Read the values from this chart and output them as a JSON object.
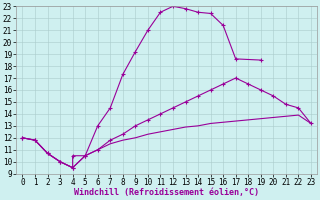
{
  "xlabel": "Windchill (Refroidissement éolien,°C)",
  "bg_color": "#cff0f0",
  "line_color": "#990099",
  "grid_color": "#aacccc",
  "xlim": [
    -0.5,
    23.5
  ],
  "ylim": [
    9,
    23
  ],
  "xticks": [
    0,
    1,
    2,
    3,
    4,
    5,
    6,
    7,
    8,
    9,
    10,
    11,
    12,
    13,
    14,
    15,
    16,
    17,
    18,
    19,
    20,
    21,
    22,
    23
  ],
  "yticks": [
    9,
    10,
    11,
    12,
    13,
    14,
    15,
    16,
    17,
    18,
    19,
    20,
    21,
    22,
    23
  ],
  "curve1_x": [
    0,
    1,
    2,
    3,
    4,
    4,
    5,
    6,
    7,
    8,
    9,
    10,
    11,
    12,
    13,
    14,
    15,
    16,
    17,
    19
  ],
  "curve1_y": [
    12,
    11.8,
    10.7,
    10.0,
    9.5,
    10.5,
    10.5,
    13.0,
    14.5,
    17.3,
    19.2,
    21.0,
    22.5,
    23.0,
    22.8,
    22.5,
    22.4,
    21.4,
    18.6,
    18.5
  ],
  "curve2_x": [
    0,
    1,
    2,
    3,
    4,
    5,
    6,
    7,
    8,
    9,
    10,
    11,
    12,
    13,
    14,
    15,
    16,
    17,
    18,
    19,
    20,
    21,
    22,
    23
  ],
  "curve2_y": [
    12,
    11.8,
    10.7,
    10.0,
    9.5,
    10.5,
    11.0,
    11.5,
    11.8,
    12.0,
    12.3,
    12.5,
    12.7,
    12.9,
    13.0,
    13.2,
    13.3,
    13.4,
    13.5,
    13.6,
    13.7,
    13.8,
    13.9,
    13.2
  ],
  "curve3_x": [
    0,
    1,
    2,
    3,
    4,
    5,
    6,
    7,
    8,
    9,
    10,
    11,
    12,
    13,
    14,
    15,
    16,
    17,
    18,
    19,
    20,
    21,
    22,
    23
  ],
  "curve3_y": [
    12,
    11.8,
    10.7,
    10.0,
    9.5,
    10.5,
    11.0,
    11.8,
    12.3,
    13.0,
    13.5,
    14.0,
    14.5,
    15.0,
    15.5,
    16.0,
    16.5,
    17.0,
    16.5,
    16.0,
    15.5,
    14.8,
    14.5,
    13.2
  ],
  "xlabel_fontsize": 6,
  "tick_fontsize": 5.5
}
